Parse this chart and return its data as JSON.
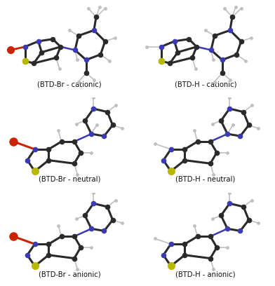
{
  "background_color": "#ffffff",
  "grid_rows": 3,
  "grid_cols": 2,
  "labels": [
    "(BTD-Br - cationic)",
    "(BTD-H - cationic)",
    "(BTD-Br - neutral)",
    "(BTD-H - neutral)",
    "(BTD-Br - anionic)",
    "(BTD-H - anionic)"
  ],
  "label_fontsize": 7.2,
  "label_color": "#111111",
  "fig_width": 3.92,
  "fig_height": 4.08,
  "dpi": 100
}
